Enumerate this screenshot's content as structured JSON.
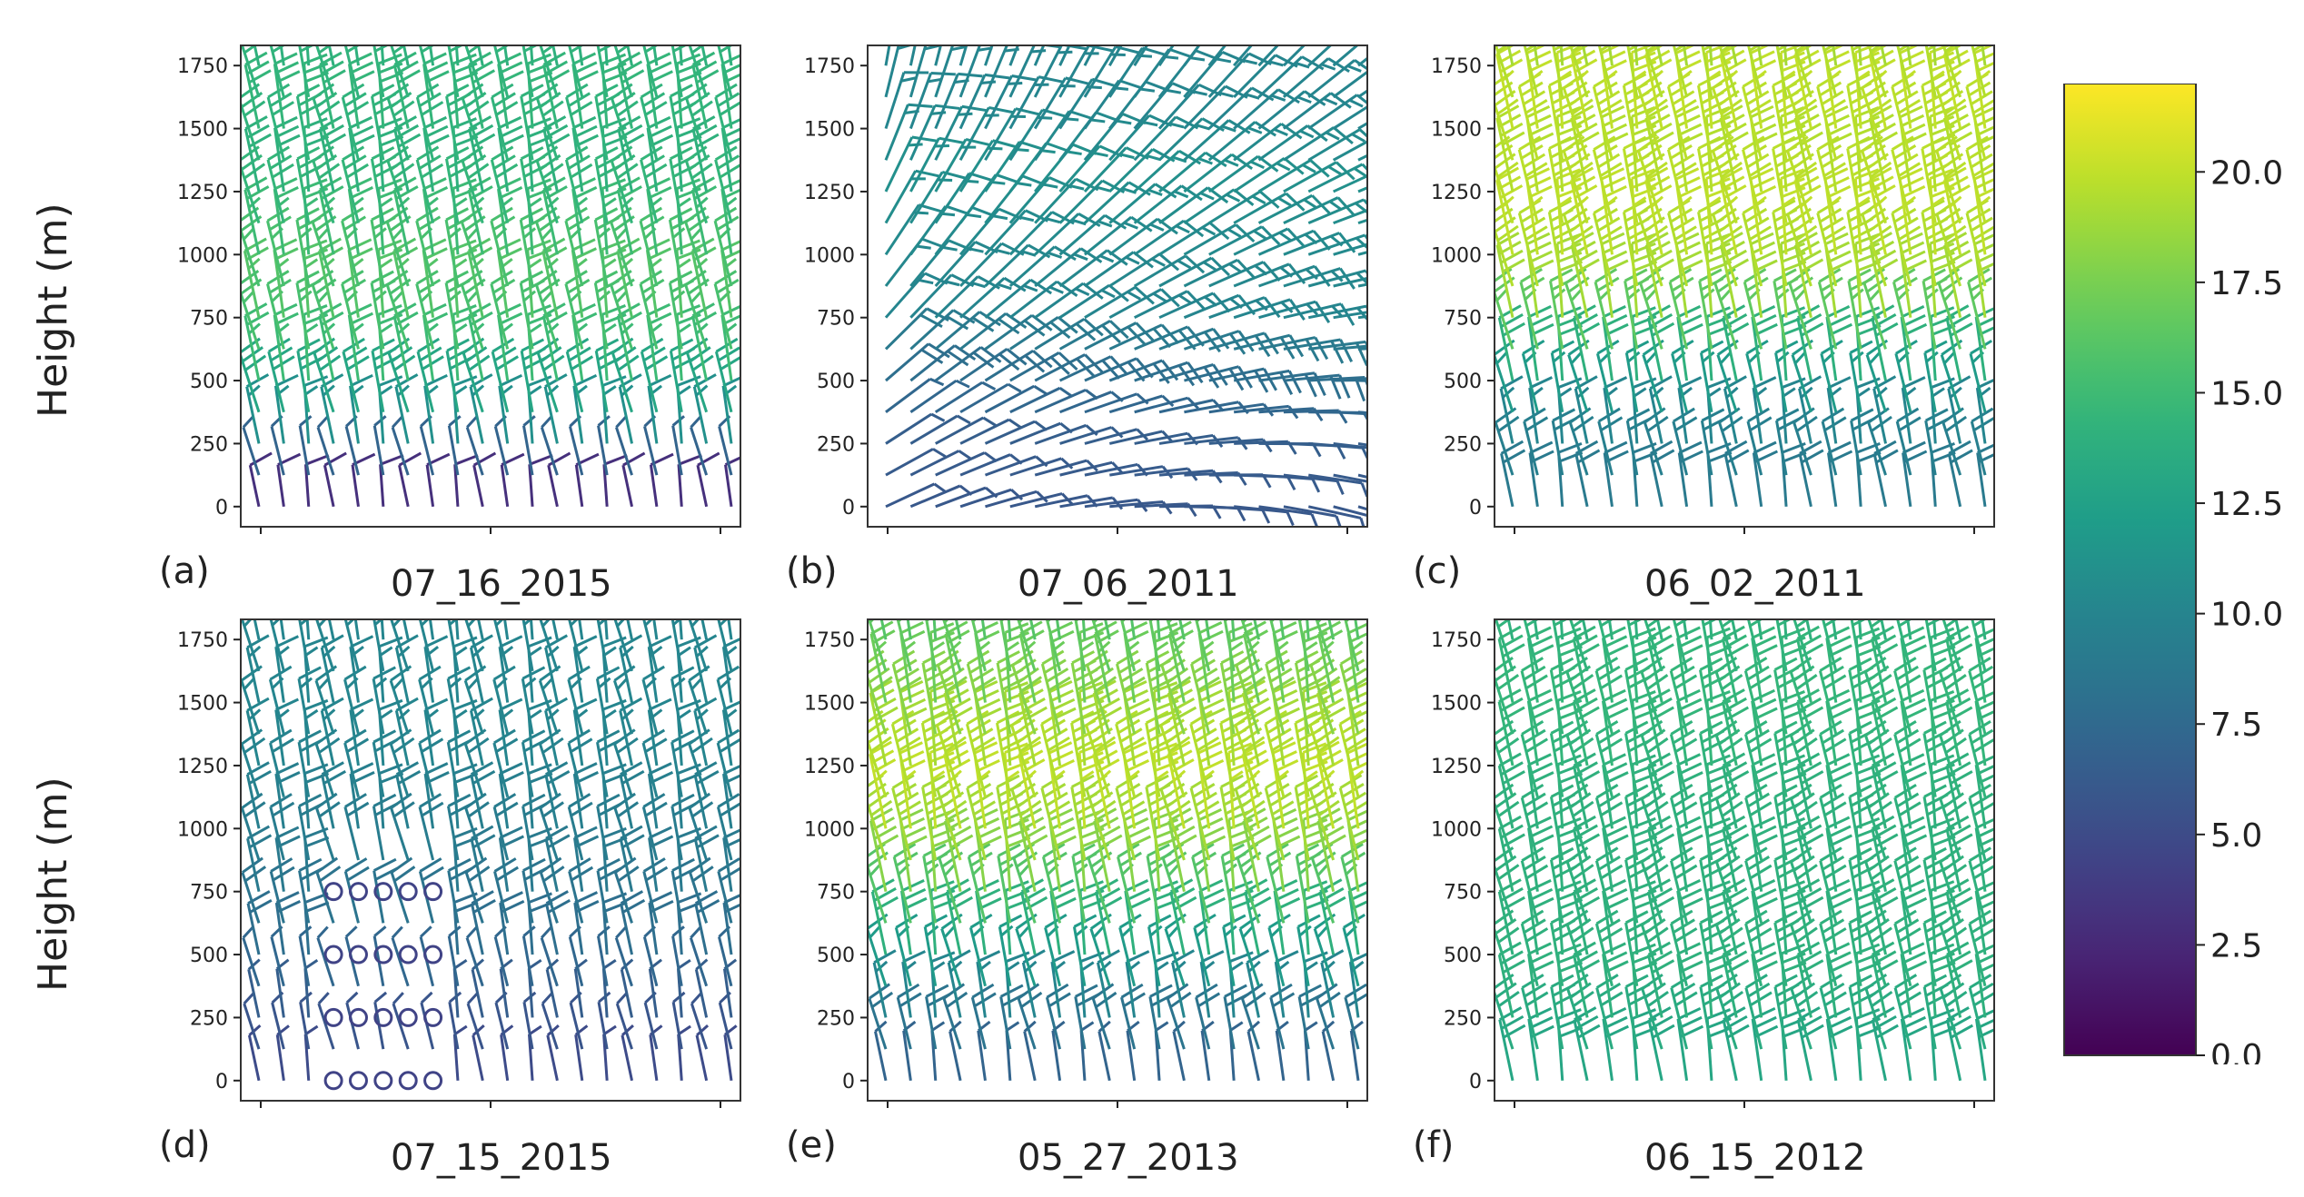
{
  "chart_data": [
    {
      "type": "barbs",
      "panel": "(a)",
      "date": "07_16_2015",
      "ylabel": "Height (m)",
      "yticks": [
        0,
        250,
        500,
        750,
        1000,
        1250,
        1500,
        1750
      ],
      "ylim": [
        -80,
        1830
      ],
      "speed_by_height": [
        [
          0,
          3
        ],
        [
          250,
          11
        ],
        [
          500,
          15
        ],
        [
          750,
          16
        ],
        [
          1000,
          15
        ],
        [
          1250,
          14
        ],
        [
          1500,
          14.5
        ],
        [
          1750,
          14
        ]
      ],
      "shape": "vertical"
    },
    {
      "type": "barbs",
      "panel": "(b)",
      "date": "07_06_2011",
      "ylabel": "",
      "yticks": [
        0,
        250,
        500,
        750,
        1000,
        1250,
        1500,
        1750
      ],
      "ylim": [
        -80,
        1830
      ],
      "speed_by_height": [
        [
          0,
          6
        ],
        [
          250,
          6.5
        ],
        [
          500,
          8
        ],
        [
          750,
          10
        ],
        [
          1000,
          10.5
        ],
        [
          1250,
          11
        ],
        [
          1500,
          10
        ],
        [
          1750,
          10
        ]
      ],
      "shape": "shear"
    },
    {
      "type": "barbs",
      "panel": "(c)",
      "date": "06_02_2011",
      "ylabel": "",
      "yticks": [
        0,
        250,
        500,
        750,
        1000,
        1250,
        1500,
        1750
      ],
      "ylim": [
        -80,
        1830
      ],
      "speed_by_height": [
        [
          0,
          9
        ],
        [
          250,
          10
        ],
        [
          500,
          14
        ],
        [
          750,
          19
        ],
        [
          1000,
          20
        ],
        [
          1250,
          19.5
        ],
        [
          1500,
          20
        ],
        [
          1750,
          19
        ]
      ],
      "shape": "vertical"
    },
    {
      "type": "barbs",
      "panel": "(d)",
      "date": "07_15_2015",
      "ylabel": "Height (m)",
      "yticks": [
        0,
        250,
        500,
        750,
        1000,
        1250,
        1500,
        1750
      ],
      "ylim": [
        -80,
        1830
      ],
      "speed_by_height": [
        [
          0,
          5
        ],
        [
          250,
          6.5
        ],
        [
          500,
          8
        ],
        [
          750,
          9
        ],
        [
          1000,
          9.5
        ],
        [
          1250,
          10
        ],
        [
          1500,
          10
        ],
        [
          1750,
          10
        ]
      ],
      "shape": "calm"
    },
    {
      "type": "barbs",
      "panel": "(e)",
      "date": "05_27_2013",
      "ylabel": "",
      "yticks": [
        0,
        250,
        500,
        750,
        1000,
        1250,
        1500,
        1750
      ],
      "ylim": [
        -80,
        1830
      ],
      "speed_by_height": [
        [
          0,
          7
        ],
        [
          250,
          10
        ],
        [
          500,
          14
        ],
        [
          750,
          18
        ],
        [
          1000,
          20
        ],
        [
          1250,
          19
        ],
        [
          1500,
          17
        ],
        [
          1750,
          16
        ]
      ],
      "shape": "vertical"
    },
    {
      "type": "barbs",
      "panel": "(f)",
      "date": "06_15_2012",
      "ylabel": "",
      "yticks": [
        0,
        250,
        500,
        750,
        1000,
        1250,
        1500,
        1750
      ],
      "ylim": [
        -80,
        1830
      ],
      "speed_by_height": [
        [
          0,
          13
        ],
        [
          250,
          14
        ],
        [
          500,
          14
        ],
        [
          750,
          14
        ],
        [
          1000,
          14
        ],
        [
          1250,
          14.5
        ],
        [
          1500,
          14.5
        ],
        [
          1750,
          14
        ]
      ],
      "shape": "vertical"
    }
  ],
  "colorbar": {
    "min": 0,
    "max": 22,
    "ticks": [
      "0.0",
      "2.5",
      "5.0",
      "7.5",
      "10.0",
      "12.5",
      "15.0",
      "17.5",
      "20.0"
    ],
    "tick_values": [
      0,
      2.5,
      5,
      7.5,
      10,
      12.5,
      15,
      17.5,
      20
    ],
    "colormap": "viridis"
  }
}
